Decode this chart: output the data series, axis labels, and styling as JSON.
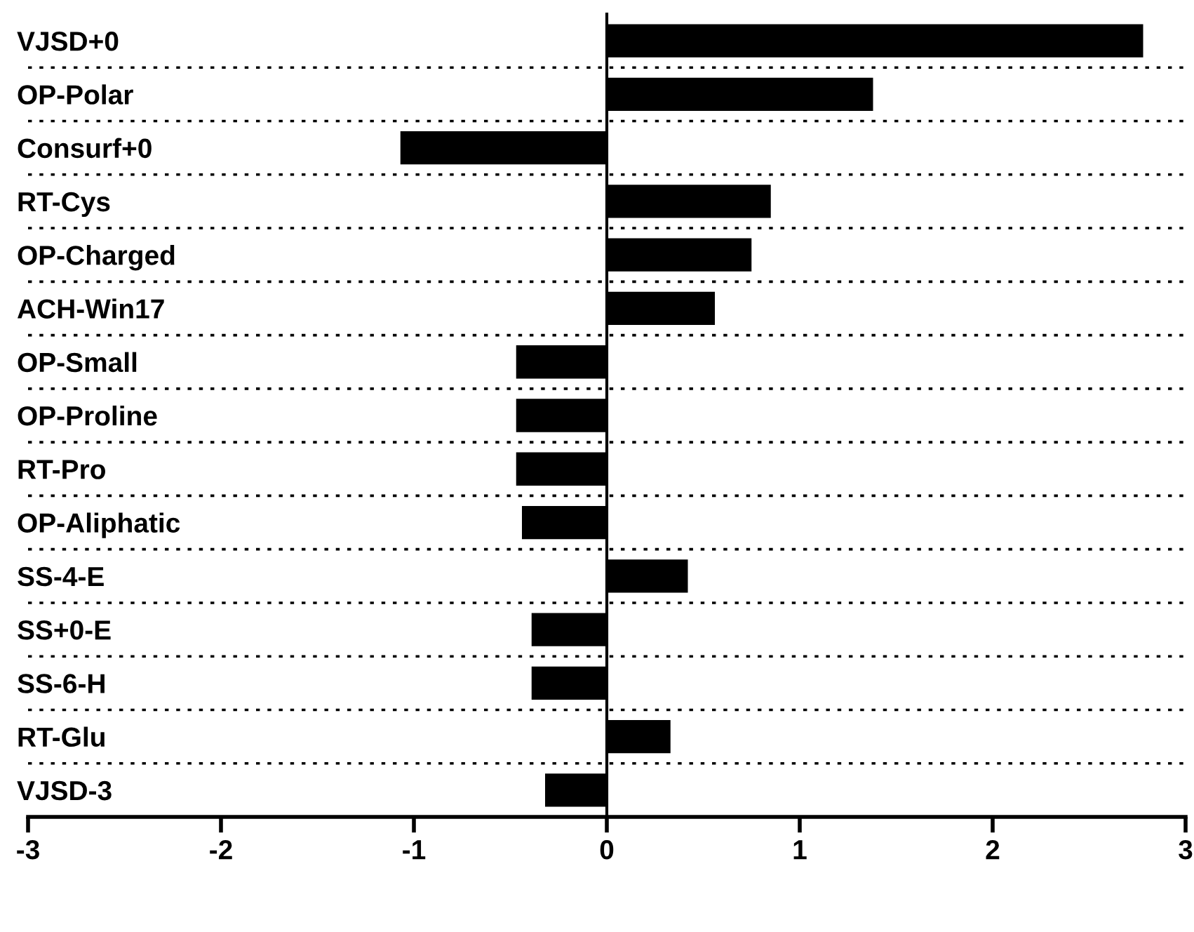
{
  "chart_data": {
    "type": "bar",
    "orientation": "horizontal",
    "categories": [
      "VJSD+0",
      "OP-Polar",
      "Consurf+0",
      "RT-Cys",
      "OP-Charged",
      "ACH-Win17",
      "OP-Small",
      "OP-Proline",
      "RT-Pro",
      "OP-Aliphatic",
      "SS-4-E",
      "SS+0-E",
      "SS-6-H",
      "RT-Glu",
      "VJSD-3"
    ],
    "values": [
      2.78,
      1.38,
      -1.07,
      0.85,
      0.75,
      0.56,
      -0.47,
      -0.47,
      -0.47,
      -0.44,
      0.42,
      -0.39,
      -0.39,
      0.33,
      -0.32
    ],
    "color": "#000000",
    "xlim": [
      -3,
      3
    ],
    "xticks": [
      -3,
      -2,
      -1,
      0,
      1,
      2,
      3
    ],
    "grid": "y",
    "line_style": "dotted"
  }
}
